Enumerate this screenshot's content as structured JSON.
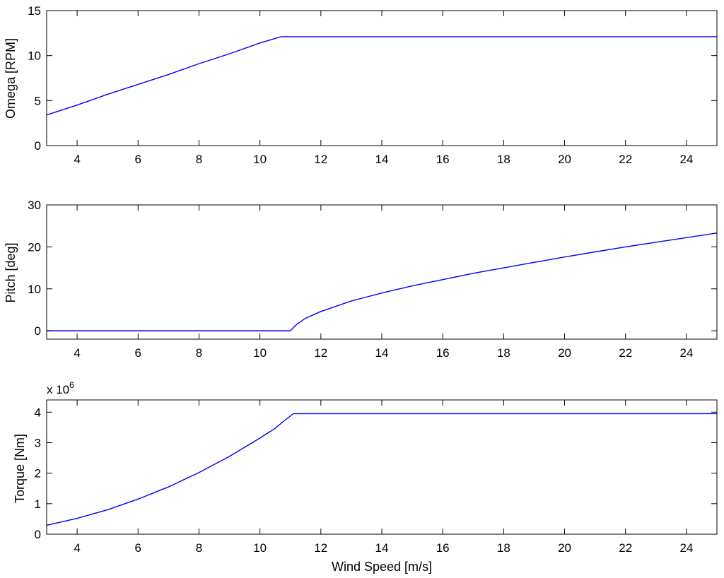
{
  "chart_data": [
    {
      "type": "line",
      "title": "",
      "xlabel": "",
      "ylabel": "Omega [RPM]",
      "xlim": [
        3,
        25
      ],
      "ylim": [
        0,
        15
      ],
      "xticks": [
        4,
        6,
        8,
        10,
        12,
        14,
        16,
        18,
        20,
        22,
        24
      ],
      "yticks": [
        0,
        5,
        10,
        15
      ],
      "grid": false,
      "line_color": "#0000ff",
      "series": [
        {
          "x": [
            3,
            4,
            5,
            6,
            7,
            8,
            9,
            10,
            10.5,
            10.7,
            12,
            14,
            16,
            18,
            20,
            22,
            24,
            25
          ],
          "values": [
            3.4,
            4.5,
            5.7,
            6.8,
            7.9,
            9.1,
            10.2,
            11.4,
            11.9,
            12.1,
            12.1,
            12.1,
            12.1,
            12.1,
            12.1,
            12.1,
            12.1,
            12.1
          ]
        }
      ]
    },
    {
      "type": "line",
      "title": "",
      "xlabel": "",
      "ylabel": "Pitch [deg]",
      "xlim": [
        3,
        25
      ],
      "ylim": [
        -2,
        30
      ],
      "xticks": [
        4,
        6,
        8,
        10,
        12,
        14,
        16,
        18,
        20,
        22,
        24
      ],
      "yticks": [
        0,
        10,
        20,
        30
      ],
      "grid": false,
      "line_color": "#0000ff",
      "series": [
        {
          "x": [
            3,
            6,
            9,
            11,
            11.2,
            11.5,
            12,
            13,
            14,
            15,
            16,
            17,
            18,
            19,
            20,
            21,
            22,
            23,
            24,
            25
          ],
          "values": [
            0,
            0,
            0,
            0,
            1.5,
            3.0,
            4.6,
            7.1,
            9.0,
            10.7,
            12.2,
            13.7,
            15.0,
            16.3,
            17.6,
            18.8,
            20.0,
            21.1,
            22.2,
            23.3
          ]
        }
      ]
    },
    {
      "type": "line",
      "title": "",
      "xlabel": "Wind Speed [m/s]",
      "ylabel": "Torque [Nm]",
      "y_multiplier_label": "x 10",
      "y_multiplier_exponent": "6",
      "xlim": [
        3,
        25
      ],
      "ylim": [
        0,
        4.4
      ],
      "xticks": [
        4,
        6,
        8,
        10,
        12,
        14,
        16,
        18,
        20,
        22,
        24
      ],
      "yticks": [
        0,
        1,
        2,
        3,
        4
      ],
      "grid": false,
      "line_color": "#0000ff",
      "series": [
        {
          "x": [
            3,
            4,
            5,
            6,
            7,
            8,
            9,
            10,
            10.5,
            10.8,
            11.1,
            12,
            14,
            16,
            18,
            20,
            22,
            24,
            25
          ],
          "values": [
            0.29,
            0.52,
            0.8,
            1.15,
            1.55,
            2.02,
            2.55,
            3.15,
            3.47,
            3.72,
            3.95,
            3.95,
            3.95,
            3.95,
            3.95,
            3.95,
            3.95,
            3.95,
            3.95
          ]
        }
      ]
    }
  ]
}
